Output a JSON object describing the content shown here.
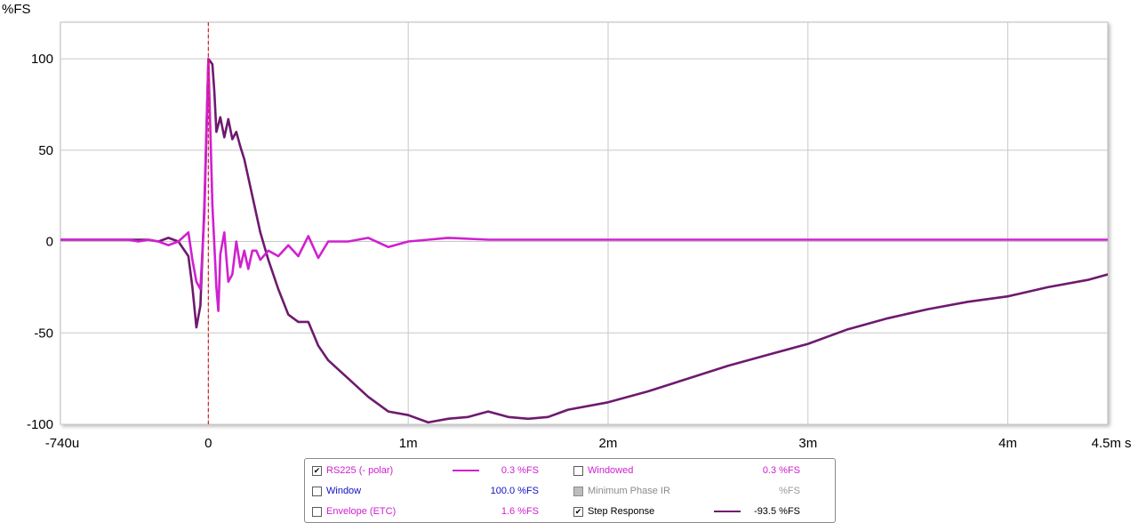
{
  "chart_data": {
    "type": "line",
    "ylabel": "%FS",
    "xunit": "s",
    "xlim": [
      -0.00074,
      0.0045
    ],
    "ylim": [
      -100,
      120
    ],
    "xticks": [
      {
        "v": -0.00074,
        "label": "-740u"
      },
      {
        "v": 0,
        "label": "0"
      },
      {
        "v": 0.001,
        "label": "1m"
      },
      {
        "v": 0.002,
        "label": "2m"
      },
      {
        "v": 0.003,
        "label": "3m"
      },
      {
        "v": 0.004,
        "label": "4m"
      },
      {
        "v": 0.0045,
        "label": "4.5m"
      }
    ],
    "yticks": [
      {
        "v": 100,
        "label": "100"
      },
      {
        "v": 50,
        "label": "50"
      },
      {
        "v": 0,
        "label": "0"
      },
      {
        "v": -50,
        "label": "-50"
      },
      {
        "v": -100,
        "label": "-100"
      }
    ],
    "grid": true,
    "marker_x": 0,
    "series": [
      {
        "name": "Step Response",
        "color": "#6e1a6e",
        "x": [
          -0.00074,
          -0.0006,
          -0.0005,
          -0.0004,
          -0.0003,
          -0.00025,
          -0.0002,
          -0.00015,
          -0.0001,
          -8e-05,
          -6e-05,
          -4e-05,
          -2e-05,
          0,
          2e-05,
          3e-05,
          4e-05,
          6e-05,
          8e-05,
          0.0001,
          0.00012,
          0.00014,
          0.00016,
          0.00018,
          0.0002,
          0.00022,
          0.00026,
          0.0003,
          0.00035,
          0.0004,
          0.00045,
          0.0005,
          0.00055,
          0.0006,
          0.0007,
          0.0008,
          0.0009,
          0.001,
          0.0011,
          0.0012,
          0.0013,
          0.0014,
          0.0015,
          0.0016,
          0.0017,
          0.0018,
          0.002,
          0.0022,
          0.0024,
          0.0026,
          0.0028,
          0.003,
          0.0032,
          0.0034,
          0.0036,
          0.0038,
          0.004,
          0.0042,
          0.0044,
          0.0045
        ],
        "y": [
          1,
          1,
          1,
          1,
          1,
          0,
          2,
          0,
          -8,
          -25,
          -47,
          -35,
          20,
          100,
          97,
          82,
          60,
          68,
          57,
          67,
          56,
          60,
          52,
          45,
          35,
          25,
          5,
          -10,
          -26,
          -40,
          -44,
          -44,
          -57,
          -65,
          -75,
          -85,
          -93,
          -95,
          -99,
          -97,
          -96,
          -93,
          -96,
          -97,
          -96,
          -92,
          -88,
          -82,
          -75,
          -68,
          -62,
          -56,
          -48,
          -42,
          -37,
          -33,
          -30,
          -25,
          -21,
          -18
        ]
      },
      {
        "name": "RS225 (- polar)",
        "color": "#d020d0",
        "x": [
          -0.00074,
          -0.0005,
          -0.0004,
          -0.00035,
          -0.0003,
          -0.00025,
          -0.0002,
          -0.00015,
          -0.0001,
          -8e-05,
          -6e-05,
          -4e-05,
          -2e-05,
          0,
          2e-05,
          4e-05,
          5e-05,
          6e-05,
          8e-05,
          0.0001,
          0.00012,
          0.00014,
          0.00016,
          0.00018,
          0.0002,
          0.00022,
          0.00024,
          0.00026,
          0.0003,
          0.00035,
          0.0004,
          0.00045,
          0.0005,
          0.00055,
          0.0006,
          0.0007,
          0.0008,
          0.0009,
          0.001,
          0.0011,
          0.0012,
          0.0014,
          0.0016,
          0.0018,
          0.002,
          0.0025,
          0.003,
          0.0035,
          0.004,
          0.0045
        ],
        "y": [
          1,
          1,
          1,
          0,
          1,
          0,
          -2,
          0,
          5,
          -10,
          -22,
          -26,
          15,
          100,
          20,
          -25,
          -38,
          -7,
          5,
          -22,
          -18,
          0,
          -14,
          -5,
          -15,
          -5,
          -5,
          -10,
          -5,
          -8,
          -2,
          -8,
          3,
          -9,
          0,
          0,
          2,
          -3,
          0,
          1,
          2,
          1,
          1,
          1,
          1,
          1,
          1,
          1,
          1,
          1
        ]
      }
    ]
  },
  "legend": {
    "rs225_label": "RS225 (- polar)",
    "rs225_value": "0.3 %FS",
    "rs225_checked": "✔",
    "rs225_color": "#d020d0",
    "window_label": "Window",
    "window_value": "100.0 %FS",
    "window_color": "#1010c0",
    "envelope_label": "Envelope (ETC)",
    "envelope_value": "1.6 %FS",
    "windowed_label": "Windowed",
    "windowed_value": "0.3 %FS",
    "minphase_label": "Minimum Phase IR",
    "minphase_value": "%FS",
    "step_label": "Step Response",
    "step_value": "-93.5 %FS",
    "step_checked": "✔",
    "step_color": "#6e1a6e"
  }
}
